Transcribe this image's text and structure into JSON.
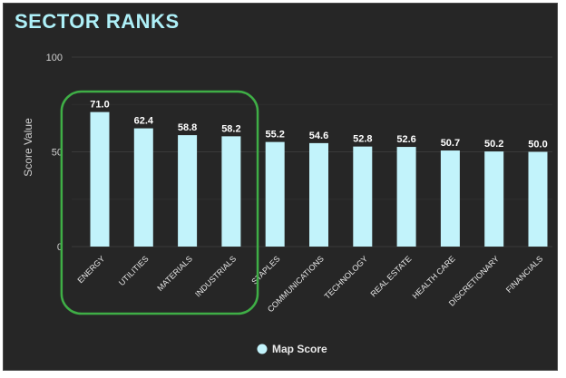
{
  "title": "SECTOR RANKS",
  "chart_data": {
    "type": "bar",
    "categories": [
      "ENERGY",
      "UTILITIES",
      "MATERIALS",
      "INDUSTRIALS",
      "STAPLES",
      "COMMUNICATIONS",
      "TECHNOLOGY",
      "REAL ESTATE",
      "HEALTH CARE",
      "DISCRETIONARY",
      "FINANCIALS"
    ],
    "series": [
      {
        "name": "Map Score",
        "values": [
          71.0,
          62.4,
          58.8,
          58.2,
          55.2,
          54.6,
          52.8,
          52.6,
          50.7,
          50.2,
          50.0
        ]
      }
    ],
    "value_labels": [
      "71.0",
      "62.4",
      "58.8",
      "58.2",
      "55.2",
      "54.6",
      "52.8",
      "52.6",
      "50.7",
      "50.2",
      "50.0"
    ],
    "ylabel": "Score Value",
    "ylim": [
      0,
      100
    ],
    "yticks": [
      "0",
      "50",
      "100"
    ],
    "ytick_values": [
      0,
      50,
      100
    ],
    "grid": true,
    "legend_position": "bottom",
    "highlight": {
      "categories": [
        "ENERGY",
        "UTILITIES",
        "MATERIALS",
        "INDUSTRIALS"
      ],
      "color": "#3fae46"
    },
    "colors": {
      "bar": "#c2f3fb",
      "background": "#262626",
      "grid": "#3a3a3a",
      "title": "#aef0f8"
    }
  }
}
